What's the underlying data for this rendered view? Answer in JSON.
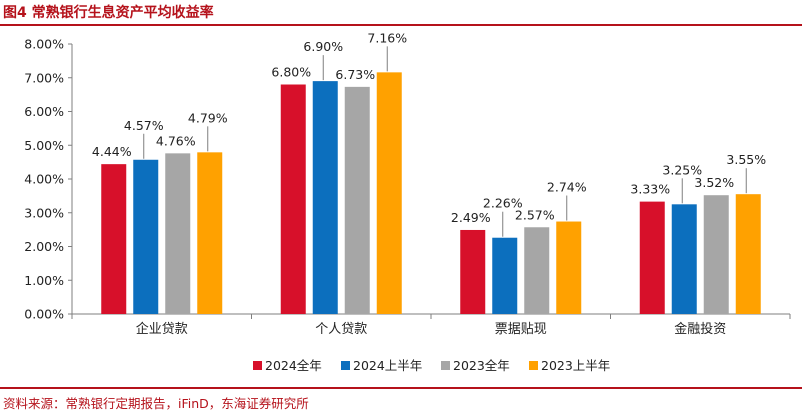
{
  "figure": {
    "title": "图4 常熟银行生息资产平均收益率",
    "source": "资料来源：常熟银行定期报告，iFinD，东海证券研究所"
  },
  "chart_data": {
    "type": "bar",
    "title": "图4 常熟银行生息资产平均收益率",
    "xlabel": "",
    "ylabel": "",
    "categories": [
      "企业贷款",
      "个人贷款",
      "票据贴现",
      "金融投资"
    ],
    "ylim": [
      0,
      8
    ],
    "yticks": [
      "0.00%",
      "1.00%",
      "2.00%",
      "3.00%",
      "4.00%",
      "5.00%",
      "6.00%",
      "7.00%",
      "8.00%"
    ],
    "unit": "%",
    "grid": false,
    "legend_position": "bottom",
    "series": [
      {
        "name": "2024全年",
        "color": "#d7102a",
        "values": [
          4.44,
          6.8,
          2.49,
          3.33
        ],
        "labels": [
          "4.44%",
          "6.80%",
          "2.49%",
          "3.33%"
        ]
      },
      {
        "name": "2024上半年",
        "color": "#0c6fbe",
        "values": [
          4.57,
          6.9,
          2.26,
          3.25
        ],
        "labels": [
          "4.57%",
          "6.90%",
          "2.26%",
          "3.25%"
        ]
      },
      {
        "name": "2023全年",
        "color": "#a6a6a6",
        "values": [
          4.76,
          6.73,
          2.57,
          3.52
        ],
        "labels": [
          "4.76%",
          "6.73%",
          "2.57%",
          "3.52%"
        ]
      },
      {
        "name": "2023上半年",
        "color": "#ffa100",
        "values": [
          4.79,
          7.16,
          2.74,
          3.55
        ],
        "labels": [
          "4.79%",
          "7.16%",
          "2.74%",
          "3.55%"
        ]
      }
    ]
  }
}
